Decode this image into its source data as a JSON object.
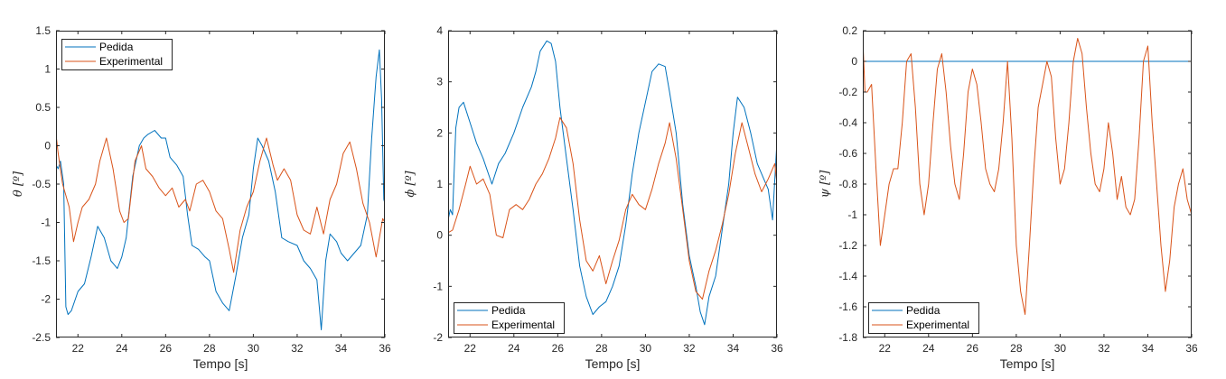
{
  "colors": {
    "pedida": "#0072BD",
    "experimental": "#D95319",
    "axis": "#262626"
  },
  "chart_data": [
    {
      "type": "line",
      "xlabel": "Tempo [s]",
      "ylabel": "θ [º]",
      "xlim": [
        21,
        36
      ],
      "ylim": [
        -2.5,
        1.5
      ],
      "xticks": [
        22,
        24,
        26,
        28,
        30,
        32,
        34,
        36
      ],
      "yticks": [
        -2.5,
        -2,
        -1.5,
        -1,
        -0.5,
        0,
        0.5,
        1,
        1.5
      ],
      "ytick_labels": [
        "-2.5",
        "-2",
        "-1.5",
        "-1",
        "-0.5",
        "0",
        "0.5",
        "1",
        "1.5"
      ],
      "legend": "top-left",
      "series": [
        {
          "name": "Pedida",
          "color": "#0072BD",
          "x": [
            21.0,
            21.1,
            21.2,
            21.35,
            21.45,
            21.55,
            21.7,
            22.0,
            22.3,
            22.6,
            22.9,
            23.2,
            23.5,
            23.8,
            24.0,
            24.2,
            24.5,
            24.8,
            25.0,
            25.2,
            25.5,
            25.8,
            26.0,
            26.2,
            26.5,
            26.8,
            27.0,
            27.2,
            27.5,
            27.8,
            28.0,
            28.3,
            28.6,
            28.9,
            29.2,
            29.5,
            29.8,
            30.0,
            30.2,
            30.4,
            30.7,
            31.0,
            31.3,
            31.6,
            32.0,
            32.3,
            32.6,
            32.9,
            33.1,
            33.3,
            33.5,
            33.8,
            34.0,
            34.3,
            34.6,
            34.9,
            35.2,
            35.4,
            35.6,
            35.75,
            35.85,
            35.95,
            36.0
          ],
          "y": [
            -0.25,
            -0.3,
            -0.2,
            -0.5,
            -2.1,
            -2.2,
            -2.15,
            -1.9,
            -1.8,
            -1.45,
            -1.05,
            -1.2,
            -1.5,
            -1.6,
            -1.45,
            -1.2,
            -0.4,
            0.0,
            0.1,
            0.15,
            0.2,
            0.1,
            0.1,
            -0.15,
            -0.25,
            -0.4,
            -0.9,
            -1.3,
            -1.35,
            -1.45,
            -1.5,
            -1.9,
            -2.05,
            -2.15,
            -1.7,
            -1.2,
            -0.9,
            -0.3,
            0.1,
            0.0,
            -0.2,
            -0.6,
            -1.2,
            -1.25,
            -1.3,
            -1.5,
            -1.6,
            -1.75,
            -2.4,
            -1.5,
            -1.15,
            -1.25,
            -1.4,
            -1.5,
            -1.4,
            -1.3,
            -0.9,
            0.1,
            0.9,
            1.25,
            0.6,
            -0.7,
            -0.75
          ]
        },
        {
          "name": "Experimental",
          "color": "#D95319",
          "x": [
            21.0,
            21.1,
            21.3,
            21.6,
            21.8,
            22.0,
            22.2,
            22.5,
            22.8,
            23.0,
            23.3,
            23.6,
            23.9,
            24.1,
            24.3,
            24.6,
            24.9,
            25.1,
            25.4,
            25.7,
            26.0,
            26.3,
            26.6,
            26.9,
            27.1,
            27.4,
            27.7,
            28.0,
            28.3,
            28.6,
            28.9,
            29.1,
            29.4,
            29.7,
            30.0,
            30.3,
            30.6,
            30.9,
            31.1,
            31.4,
            31.7,
            32.0,
            32.3,
            32.6,
            32.9,
            33.2,
            33.5,
            33.8,
            34.1,
            34.4,
            34.7,
            35.0,
            35.3,
            35.6,
            35.9,
            36.0
          ],
          "y": [
            0.15,
            -0.1,
            -0.5,
            -0.8,
            -1.25,
            -1.0,
            -0.8,
            -0.7,
            -0.5,
            -0.2,
            0.1,
            -0.3,
            -0.85,
            -1.0,
            -0.95,
            -0.2,
            0.0,
            -0.3,
            -0.4,
            -0.55,
            -0.65,
            -0.55,
            -0.8,
            -0.7,
            -0.85,
            -0.5,
            -0.45,
            -0.6,
            -0.85,
            -0.95,
            -1.35,
            -1.65,
            -1.1,
            -0.8,
            -0.6,
            -0.2,
            0.1,
            -0.25,
            -0.45,
            -0.3,
            -0.45,
            -0.9,
            -1.1,
            -1.15,
            -0.8,
            -1.15,
            -0.7,
            -0.5,
            -0.1,
            0.05,
            -0.3,
            -0.75,
            -1.0,
            -1.45,
            -0.95,
            -1.0
          ]
        }
      ]
    },
    {
      "type": "line",
      "xlabel": "Tempo [s]",
      "ylabel": "ϕ [º]",
      "xlim": [
        21,
        36
      ],
      "ylim": [
        -2,
        4
      ],
      "xticks": [
        22,
        24,
        26,
        28,
        30,
        32,
        34,
        36
      ],
      "yticks": [
        -2,
        -1,
        0,
        1,
        2,
        3,
        4
      ],
      "ytick_labels": [
        "-2",
        "-1",
        "0",
        "1",
        "2",
        "3",
        "4"
      ],
      "legend": "bottom-left",
      "series": [
        {
          "name": "Pedida",
          "color": "#0072BD",
          "x": [
            21.0,
            21.1,
            21.2,
            21.35,
            21.5,
            21.7,
            22.0,
            22.3,
            22.6,
            23.0,
            23.3,
            23.6,
            24.0,
            24.4,
            24.8,
            25.0,
            25.2,
            25.5,
            25.7,
            25.9,
            26.1,
            26.4,
            26.7,
            27.0,
            27.3,
            27.6,
            27.9,
            28.2,
            28.5,
            28.8,
            29.1,
            29.4,
            29.7,
            30.0,
            30.3,
            30.6,
            30.9,
            31.1,
            31.4,
            31.7,
            32.0,
            32.3,
            32.5,
            32.7,
            32.9,
            33.2,
            33.5,
            33.8,
            34.0,
            34.2,
            34.5,
            34.8,
            35.1,
            35.4,
            35.6,
            35.8,
            36.0
          ],
          "y": [
            0.3,
            0.5,
            0.4,
            2.1,
            2.5,
            2.6,
            2.2,
            1.8,
            1.5,
            1.0,
            1.4,
            1.6,
            2.0,
            2.5,
            2.9,
            3.2,
            3.6,
            3.8,
            3.75,
            3.4,
            2.5,
            1.5,
            0.5,
            -0.6,
            -1.2,
            -1.55,
            -1.4,
            -1.3,
            -1.0,
            -0.6,
            0.2,
            1.2,
            2.0,
            2.6,
            3.2,
            3.35,
            3.3,
            2.8,
            2.0,
            0.6,
            -0.4,
            -1.0,
            -1.5,
            -1.75,
            -1.2,
            -0.8,
            0.1,
            1.0,
            2.0,
            2.7,
            2.5,
            2.0,
            1.4,
            1.1,
            0.9,
            0.3,
            1.85
          ]
        },
        {
          "name": "Experimental",
          "color": "#D95319",
          "x": [
            21.0,
            21.2,
            21.5,
            21.8,
            22.0,
            22.3,
            22.6,
            22.9,
            23.2,
            23.5,
            23.8,
            24.1,
            24.4,
            24.7,
            25.0,
            25.3,
            25.6,
            25.9,
            26.1,
            26.4,
            26.7,
            27.0,
            27.3,
            27.6,
            27.9,
            28.2,
            28.5,
            28.8,
            29.1,
            29.4,
            29.7,
            30.0,
            30.3,
            30.6,
            30.9,
            31.1,
            31.4,
            31.7,
            32.0,
            32.3,
            32.6,
            32.9,
            33.2,
            33.5,
            33.8,
            34.1,
            34.4,
            34.7,
            35.0,
            35.3,
            35.6,
            35.9,
            36.0
          ],
          "y": [
            0.05,
            0.1,
            0.5,
            1.0,
            1.35,
            1.0,
            1.1,
            0.8,
            0.0,
            -0.05,
            0.5,
            0.6,
            0.5,
            0.7,
            1.0,
            1.2,
            1.5,
            1.9,
            2.3,
            2.1,
            1.4,
            0.3,
            -0.5,
            -0.7,
            -0.4,
            -0.95,
            -0.5,
            -0.1,
            0.5,
            0.8,
            0.6,
            0.5,
            0.9,
            1.4,
            1.8,
            2.2,
            1.5,
            0.5,
            -0.5,
            -1.1,
            -1.25,
            -0.7,
            -0.3,
            0.2,
            0.8,
            1.6,
            2.2,
            1.7,
            1.2,
            0.85,
            1.1,
            1.4,
            1.0
          ]
        }
      ]
    },
    {
      "type": "line",
      "xlabel": "Tempo [s]",
      "ylabel": "ψ [º]",
      "xlim": [
        21,
        36
      ],
      "ylim": [
        -1.8,
        0.2
      ],
      "xticks": [
        22,
        24,
        26,
        28,
        30,
        32,
        34,
        36
      ],
      "yticks": [
        -1.8,
        -1.6,
        -1.4,
        -1.2,
        -1,
        -0.8,
        -0.6,
        -0.4,
        -0.2,
        0,
        0.2
      ],
      "ytick_labels": [
        "-1.8",
        "-1.6",
        "-1.4",
        "-1.2",
        "-1",
        "-0.8",
        "-0.6",
        "-0.4",
        "-0.2",
        "0",
        "0.2"
      ],
      "legend": "bottom-left",
      "series": [
        {
          "name": "Pedida",
          "color": "#0072BD",
          "x": [
            21.0,
            36.0
          ],
          "y": [
            0.0,
            0.0
          ]
        },
        {
          "name": "Experimental",
          "color": "#D95319",
          "x": [
            21.0,
            21.1,
            21.2,
            21.4,
            21.6,
            21.8,
            22.0,
            22.2,
            22.4,
            22.6,
            22.8,
            23.0,
            23.2,
            23.4,
            23.6,
            23.8,
            24.0,
            24.2,
            24.4,
            24.6,
            24.8,
            25.0,
            25.2,
            25.4,
            25.6,
            25.8,
            26.0,
            26.2,
            26.4,
            26.6,
            26.8,
            27.0,
            27.2,
            27.4,
            27.6,
            27.8,
            28.0,
            28.2,
            28.4,
            28.6,
            28.8,
            29.0,
            29.2,
            29.4,
            29.6,
            29.8,
            30.0,
            30.2,
            30.4,
            30.6,
            30.8,
            31.0,
            31.2,
            31.4,
            31.6,
            31.8,
            32.0,
            32.2,
            32.4,
            32.6,
            32.8,
            33.0,
            33.2,
            33.4,
            33.6,
            33.8,
            34.0,
            34.2,
            34.4,
            34.6,
            34.8,
            35.0,
            35.2,
            35.4,
            35.6,
            35.8,
            36.0
          ],
          "y": [
            0.15,
            -0.2,
            -0.2,
            -0.15,
            -0.7,
            -1.2,
            -1.0,
            -0.8,
            -0.7,
            -0.7,
            -0.4,
            0.0,
            0.05,
            -0.3,
            -0.8,
            -1.0,
            -0.8,
            -0.4,
            -0.05,
            0.05,
            -0.2,
            -0.55,
            -0.8,
            -0.9,
            -0.6,
            -0.2,
            -0.05,
            -0.15,
            -0.4,
            -0.7,
            -0.8,
            -0.85,
            -0.7,
            -0.4,
            0.0,
            -0.5,
            -1.2,
            -1.5,
            -1.65,
            -1.2,
            -0.7,
            -0.3,
            -0.15,
            0.0,
            -0.1,
            -0.5,
            -0.8,
            -0.7,
            -0.4,
            0.0,
            0.15,
            0.05,
            -0.3,
            -0.6,
            -0.8,
            -0.85,
            -0.7,
            -0.4,
            -0.6,
            -0.9,
            -0.75,
            -0.95,
            -1.0,
            -0.9,
            -0.5,
            0.0,
            0.1,
            -0.4,
            -0.8,
            -1.2,
            -1.5,
            -1.3,
            -0.95,
            -0.8,
            -0.7,
            -0.9,
            -1.0
          ]
        }
      ]
    }
  ]
}
